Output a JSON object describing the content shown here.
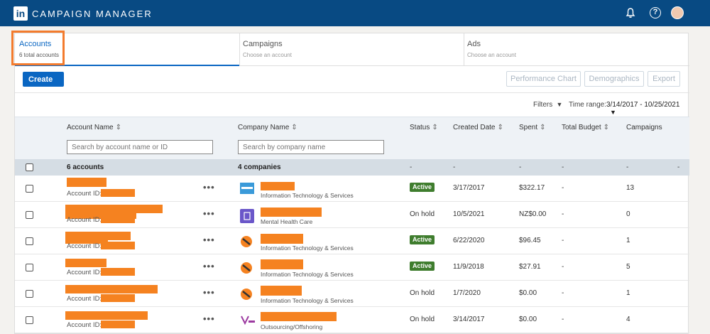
{
  "topbar": {
    "logo_text": "in",
    "title": "CAMPAIGN MANAGER",
    "help_symbol": "?"
  },
  "tabs": [
    {
      "title": "Accounts",
      "subtitle": "6 total accounts"
    },
    {
      "title": "Campaigns",
      "subtitle": "Choose an account"
    },
    {
      "title": "Ads",
      "subtitle": "Choose an account"
    }
  ],
  "toolbar": {
    "create_label": "Create",
    "performance_chart_label": "Performance Chart",
    "demographics_label": "Demographics",
    "export_label": "Export"
  },
  "filters": {
    "filters_label": "Filters",
    "time_range_label": "Time range:",
    "time_range_value": "3/14/2017 - 10/25/2021"
  },
  "table": {
    "columns": {
      "account_name": "Account Name",
      "company_name": "Company Name",
      "status": "Status",
      "created_date": "Created Date",
      "spent": "Spent",
      "total_budget": "Total Budget",
      "campaigns": "Campaigns"
    },
    "search_account_placeholder": "Search by account name or ID",
    "search_company_placeholder": "Search by company name",
    "summary": {
      "accounts": "6 accounts",
      "companies": "4 companies",
      "dash": "-"
    },
    "rows": [
      {
        "account_id_label": "Account ID:",
        "menu": "•••",
        "industry": "Information Technology & Services",
        "status": "Active",
        "created": "3/17/2017",
        "spent": "$322.17",
        "budget": "-",
        "campaigns": "13"
      },
      {
        "account_id_label": "Account ID:",
        "menu": "•••",
        "industry": "Mental Health Care",
        "status": "On hold",
        "created": "10/5/2021",
        "spent": "NZ$0.00",
        "budget": "-",
        "campaigns": "0"
      },
      {
        "account_id_label": "Account ID:",
        "menu": "•••",
        "industry": "Information Technology & Services",
        "status": "Active",
        "created": "6/22/2020",
        "spent": "$96.45",
        "budget": "-",
        "campaigns": "1"
      },
      {
        "account_id_label": "Account ID:",
        "menu": "•••",
        "industry": "Information Technology & Services",
        "status": "Active",
        "created": "11/9/2018",
        "spent": "$27.91",
        "budget": "-",
        "campaigns": "5"
      },
      {
        "account_id_label": "Account ID:",
        "menu": "•••",
        "industry": "Information Technology & Services",
        "status": "On hold",
        "created": "1/7/2020",
        "spent": "$0.00",
        "budget": "-",
        "campaigns": "1"
      },
      {
        "account_id_label": "Account ID:",
        "menu": "•••",
        "industry": "Outsourcing/Offshoring",
        "status": "On hold",
        "created": "3/14/2017",
        "spent": "$0.00",
        "budget": "-",
        "campaigns": "4"
      }
    ]
  },
  "colors": {
    "topbar": "#084a83",
    "accent": "#0a66c2",
    "active_badge": "#3f7d2e",
    "redaction": "#f58220",
    "highlight": "#f37b2d"
  }
}
